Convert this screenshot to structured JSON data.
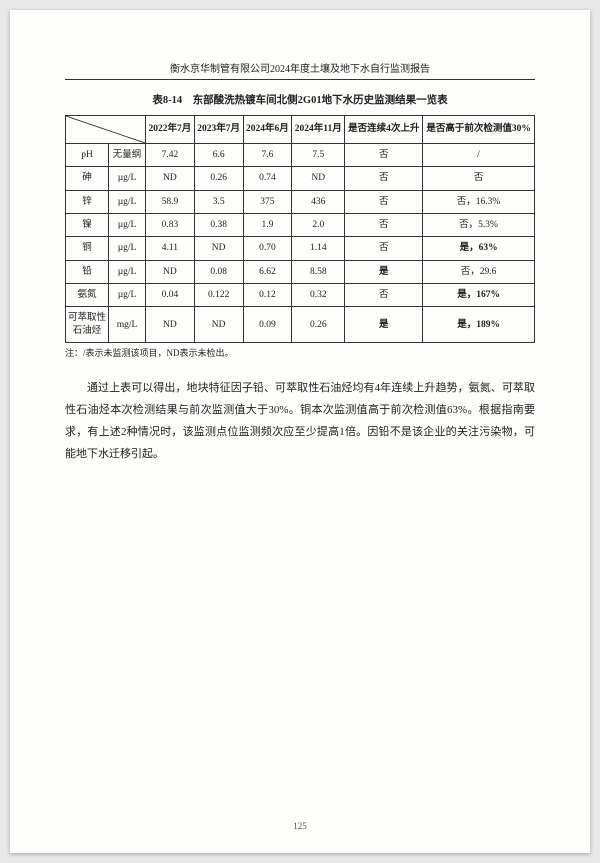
{
  "header": "衡水京华制管有限公司2024年度土壤及地下水自行监测报告",
  "caption": "表8-14　东部酸洗热镀车间北侧2G01地下水历史监测结果一览表",
  "cols": {
    "c1": "2022年7月",
    "c2": "2023年7月",
    "c3": "2024年6月",
    "c4": "2024年11月",
    "c5": "是否连续4次上升",
    "c6": "是否高于前次检测值30%"
  },
  "rows": [
    {
      "name": "pH",
      "unit": "无量纲",
      "v": [
        "7.42",
        "6.6",
        "7.6",
        "7.5"
      ],
      "r1": "否",
      "r2": "/",
      "b1": false,
      "b2": false
    },
    {
      "name": "砷",
      "unit": "µg/L",
      "v": [
        "ND",
        "0.26",
        "0.74",
        "ND"
      ],
      "r1": "否",
      "r2": "否",
      "b1": false,
      "b2": false
    },
    {
      "name": "锌",
      "unit": "µg/L",
      "v": [
        "58.9",
        "3.5",
        "375",
        "436"
      ],
      "r1": "否",
      "r2": "否，16.3%",
      "b1": false,
      "b2": false
    },
    {
      "name": "镍",
      "unit": "µg/L",
      "v": [
        "0.83",
        "0.38",
        "1.9",
        "2.0"
      ],
      "r1": "否",
      "r2": "否，5.3%",
      "b1": false,
      "b2": false
    },
    {
      "name": "铜",
      "unit": "µg/L",
      "v": [
        "4.11",
        "ND",
        "0.70",
        "1.14"
      ],
      "r1": "否",
      "r2": "是，63%",
      "b1": false,
      "b2": true
    },
    {
      "name": "铅",
      "unit": "µg/L",
      "v": [
        "ND",
        "0.08",
        "6.62",
        "8.58"
      ],
      "r1": "是",
      "r2": "否，29.6",
      "b1": true,
      "b2": false
    },
    {
      "name": "氨氮",
      "unit": "µg/L",
      "v": [
        "0.04",
        "0.122",
        "0.12",
        "0.32"
      ],
      "r1": "否",
      "r2": "是，167%",
      "b1": false,
      "b2": true
    },
    {
      "name": "可萃取性石油烃",
      "unit": "mg/L",
      "v": [
        "ND",
        "ND",
        "0.09",
        "0.26"
      ],
      "r1": "是",
      "r2": "是，189%",
      "b1": true,
      "b2": true
    }
  ],
  "note": "注：/表示未监测该项目，ND表示未检出。",
  "paragraph": "通过上表可以得出，地块特征因子铅、可萃取性石油烃均有4年连续上升趋势，氨氮、可萃取性石油烃本次检测结果与前次监测值大于30%。铜本次监测值高于前次检测值63%。根据指南要求，有上述2种情况时，该监测点位监测频次应至少提高1倍。因铅不是该企业的关注污染物，可能地下水迁移引起。",
  "pagenum": "125"
}
